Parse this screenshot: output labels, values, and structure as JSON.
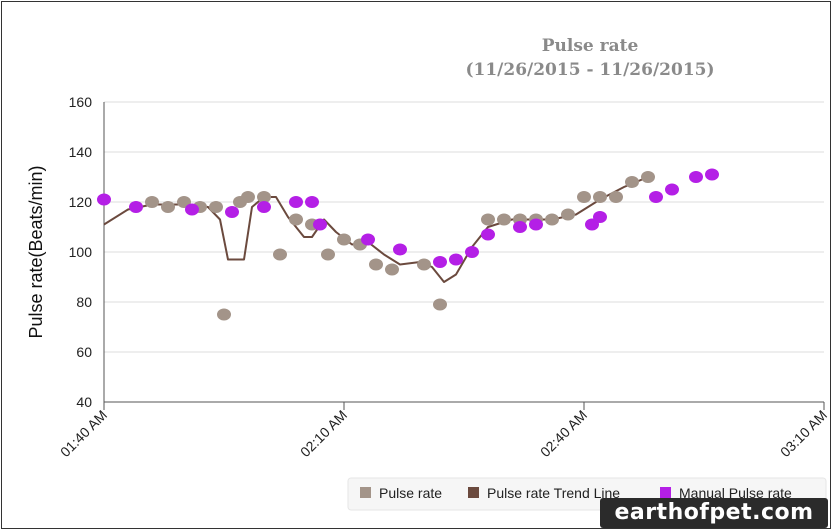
{
  "chart_data": {
    "type": "scatter",
    "title": "Pulse rate",
    "subtitle": "(11/26/2015 - 11/26/2015)",
    "ylabel": "Pulse rate(Beats/min)",
    "xlabel": "",
    "ylim": [
      40,
      160
    ],
    "yticks": [
      40,
      60,
      80,
      100,
      120,
      140,
      160
    ],
    "x_unit": "minutes after 01:40 AM",
    "xlim": [
      0,
      90
    ],
    "xticks": [
      {
        "value": 0,
        "label": "01:40 AM"
      },
      {
        "value": 30,
        "label": "02:10 AM"
      },
      {
        "value": 60,
        "label": "02:40 AM"
      },
      {
        "value": 90,
        "label": "03:10 AM"
      }
    ],
    "grid": "horizontal",
    "legend_position": "bottom-right",
    "series": [
      {
        "name": "Pulse rate",
        "kind": "scatter",
        "color": "#a39489",
        "points": [
          [
            6,
            120
          ],
          [
            8,
            118
          ],
          [
            10,
            120
          ],
          [
            12,
            118
          ],
          [
            14,
            118
          ],
          [
            15,
            75
          ],
          [
            17,
            120
          ],
          [
            18,
            122
          ],
          [
            20,
            122
          ],
          [
            22,
            99
          ],
          [
            24,
            113
          ],
          [
            26,
            111
          ],
          [
            28,
            99
          ],
          [
            30,
            105
          ],
          [
            32,
            103
          ],
          [
            34,
            95
          ],
          [
            36,
            93
          ],
          [
            40,
            95
          ],
          [
            42,
            79
          ],
          [
            48,
            113
          ],
          [
            50,
            113
          ],
          [
            52,
            113
          ],
          [
            54,
            113
          ],
          [
            56,
            113
          ],
          [
            58,
            115
          ],
          [
            60,
            122
          ],
          [
            62,
            122
          ],
          [
            64,
            122
          ],
          [
            66,
            128
          ],
          [
            68,
            130
          ]
        ]
      },
      {
        "name": "Pulse rate Trend Line",
        "kind": "line",
        "color": "#6b4a3e",
        "points": [
          [
            0,
            111
          ],
          [
            3,
            117
          ],
          [
            6,
            119
          ],
          [
            10,
            119
          ],
          [
            13,
            118
          ],
          [
            14.5,
            113
          ],
          [
            15.5,
            97
          ],
          [
            17.5,
            97
          ],
          [
            18.5,
            118
          ],
          [
            20,
            122
          ],
          [
            21.5,
            122
          ],
          [
            23,
            114
          ],
          [
            25,
            106
          ],
          [
            26,
            106
          ],
          [
            27.5,
            113
          ],
          [
            29,
            108
          ],
          [
            31,
            103
          ],
          [
            33,
            104
          ],
          [
            35,
            99
          ],
          [
            37,
            95
          ],
          [
            39.5,
            96
          ],
          [
            41,
            94
          ],
          [
            42.5,
            88
          ],
          [
            44,
            91
          ],
          [
            46,
            102
          ],
          [
            48,
            110
          ],
          [
            51,
            113
          ],
          [
            56,
            113
          ],
          [
            59,
            115
          ],
          [
            62,
            121
          ],
          [
            65,
            126
          ],
          [
            68,
            130
          ]
        ]
      },
      {
        "name": "Manual Pulse rate",
        "kind": "scatter",
        "color": "#b41fe6",
        "points": [
          [
            0,
            121
          ],
          [
            4,
            118
          ],
          [
            11,
            117
          ],
          [
            16,
            116
          ],
          [
            20,
            118
          ],
          [
            24,
            120
          ],
          [
            26,
            120
          ],
          [
            27,
            111
          ],
          [
            33,
            105
          ],
          [
            37,
            101
          ],
          [
            42,
            96
          ],
          [
            44,
            97
          ],
          [
            46,
            100
          ],
          [
            48,
            107
          ],
          [
            52,
            110
          ],
          [
            54,
            111
          ],
          [
            61,
            111
          ],
          [
            62,
            114
          ],
          [
            69,
            122
          ],
          [
            71,
            125
          ],
          [
            74,
            130
          ],
          [
            76,
            131
          ]
        ]
      }
    ]
  },
  "watermark": "earthofpet.com"
}
